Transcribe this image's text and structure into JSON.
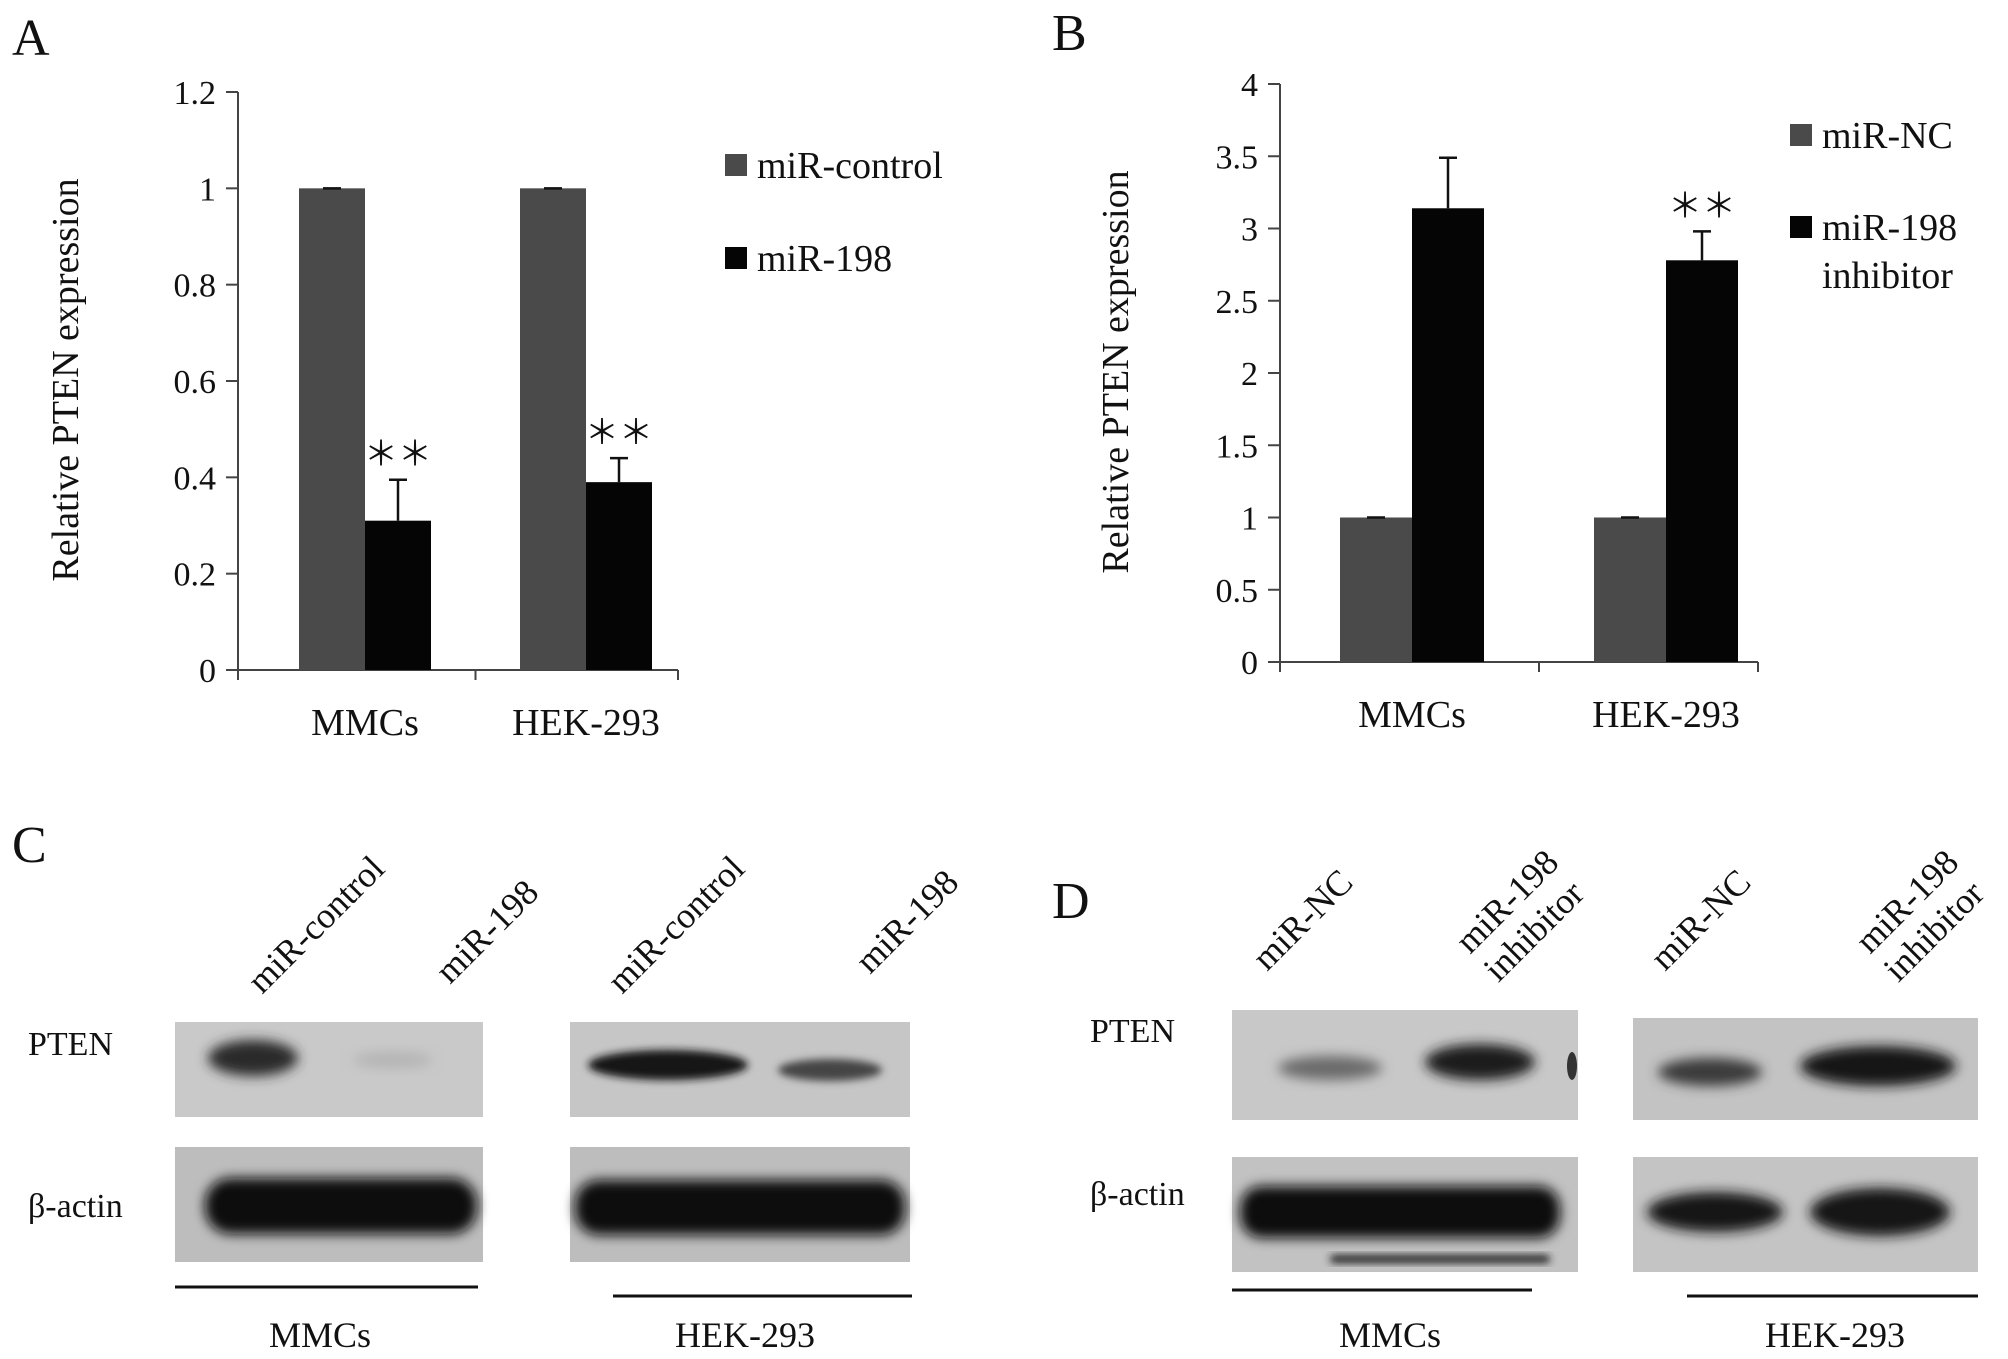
{
  "panels": {
    "A": "A",
    "B": "B",
    "C": "C",
    "D": "D"
  },
  "chart_data": [
    {
      "id": "A",
      "type": "bar",
      "ylabel": "Relative PTEN expression",
      "ylim": [
        0,
        1.2
      ],
      "yticks": [
        "0",
        "0.2",
        "0.4",
        "0.6",
        "0.8",
        "1",
        "1.2"
      ],
      "ytick_values": [
        0,
        0.2,
        0.4,
        0.6,
        0.8,
        1.0,
        1.2
      ],
      "categories": [
        "MMCs",
        "HEK-293"
      ],
      "series": [
        {
          "name": "miR-control",
          "values": [
            1.0,
            1.0
          ],
          "errors": [
            0.0,
            0.0
          ],
          "color": "#4a4a4a"
        },
        {
          "name": "miR-198",
          "values": [
            0.31,
            0.39
          ],
          "errors": [
            0.085,
            0.05
          ],
          "color": "#050505"
        }
      ],
      "annotations": [
        {
          "series": 1,
          "category": 0,
          "text": "＊＊"
        },
        {
          "series": 1,
          "category": 1,
          "text": "＊＊"
        }
      ],
      "legend_lines": [
        [
          "miR-control"
        ],
        [
          "miR-198"
        ]
      ],
      "legend_position": "right"
    },
    {
      "id": "B",
      "type": "bar",
      "ylabel": "Relative PTEN expression",
      "ylim": [
        0,
        4
      ],
      "yticks": [
        "0",
        "0.5",
        "1",
        "1.5",
        "2",
        "2.5",
        "3",
        "3.5",
        "4"
      ],
      "ytick_values": [
        0,
        0.5,
        1,
        1.5,
        2,
        2.5,
        3,
        3.5,
        4
      ],
      "categories": [
        "MMCs",
        "HEK-293"
      ],
      "series": [
        {
          "name": "miR-NC",
          "values": [
            1.0,
            1.0
          ],
          "errors": [
            0.0,
            0.0
          ],
          "color": "#4a4a4a"
        },
        {
          "name": "miR-198 inhibitor",
          "values": [
            3.14,
            2.78
          ],
          "errors": [
            0.35,
            0.2
          ],
          "color": "#050505"
        }
      ],
      "annotations": [
        {
          "series": 1,
          "category": 1,
          "text": "＊＊"
        }
      ],
      "legend_lines": [
        [
          "miR-NC"
        ],
        [
          "miR-198",
          "inhibitor"
        ]
      ],
      "legend_position": "right"
    }
  ],
  "blots": {
    "C": {
      "lanes": [
        "miR-control",
        "miR-198",
        "miR-control",
        "miR-198"
      ],
      "rows": [
        "PTEN",
        "β-actin"
      ],
      "groups": [
        "MMCs",
        "HEK-293"
      ]
    },
    "D": {
      "lanes": [
        [
          "miR-NC"
        ],
        [
          "miR-198",
          "inhibitor"
        ],
        [
          "miR-NC"
        ],
        [
          "miR-198",
          "inhibitor"
        ]
      ],
      "rows": [
        "PTEN",
        "β-actin"
      ],
      "groups": [
        "MMCs",
        "HEK-293"
      ]
    }
  }
}
